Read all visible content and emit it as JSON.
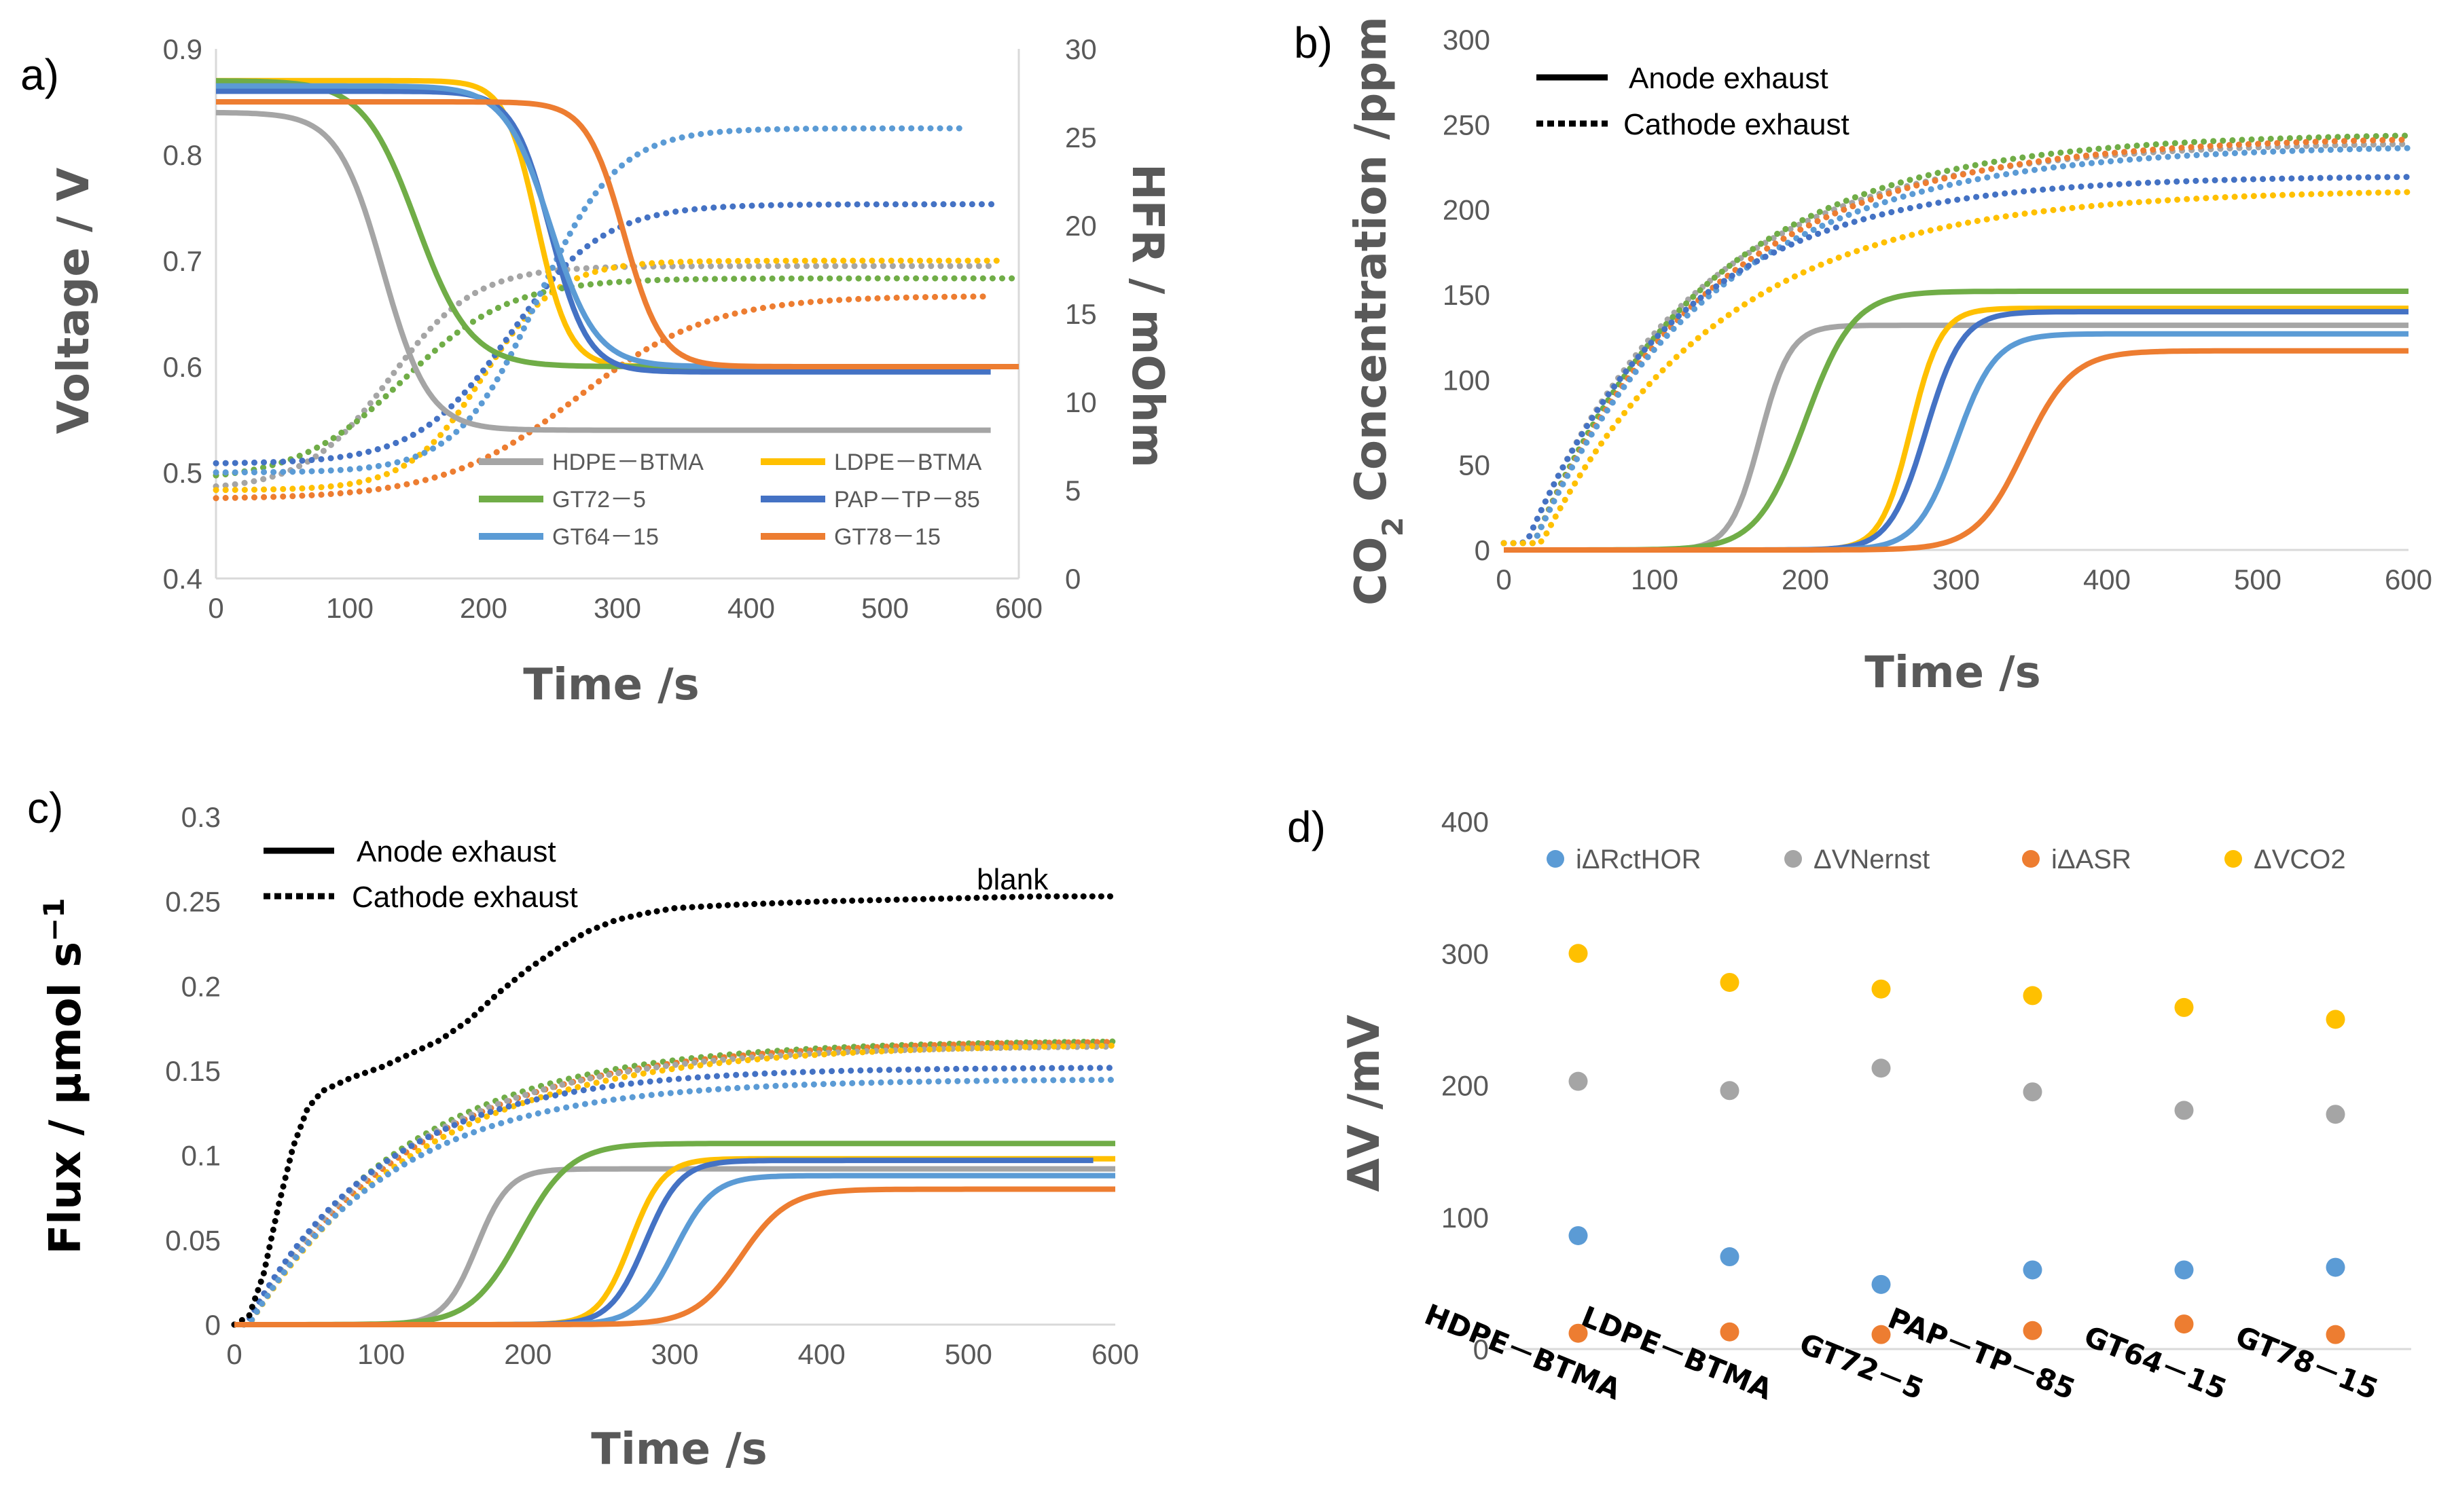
{
  "colors": {
    "HDPE-BTMA": "#a5a5a5",
    "LDPE-BTMA": "#ffc000",
    "GT72-5": "#70ad47",
    "PAP-TP-85": "#4472c4",
    "GT64-15": "#5b9bd5",
    "GT78-15": "#ed7d31",
    "blank": "#000000",
    "axis": "#d9d9d9"
  },
  "chart_data": [
    {
      "panel": "a)",
      "type": "line",
      "xlabel": "Time /s",
      "ylabel": "Voltage / V",
      "ylabel_right": "HFR / mOhm",
      "xlim": [
        0,
        600
      ],
      "ylim": [
        0.4,
        0.9
      ],
      "ylim_right": [
        0,
        30
      ],
      "x_ticks": [
        "0",
        "100",
        "200",
        "300",
        "400",
        "500",
        "600"
      ],
      "y_ticks": [
        "0.4",
        "0.5",
        "0.6",
        "0.7",
        "0.8",
        "0.9"
      ],
      "y_ticks_right": [
        "0",
        "5",
        "10",
        "15",
        "20",
        "25",
        "30"
      ],
      "legend": [
        "HDPE－BTMA",
        "LDPE－BTMA",
        "GT72－5",
        "PAP－TP－85",
        "GT64－15",
        "GT78－15"
      ],
      "series_voltage": [
        {
          "name": "HDPE－BTMA",
          "key": "HDPE-BTMA",
          "v0": 0.84,
          "v1": 0.54,
          "t50": 125,
          "w": 17,
          "tend": 580
        },
        {
          "name": "LDPE－BTMA",
          "key": "LDPE-BTMA",
          "v0": 0.87,
          "v1": 0.6,
          "t50": 240,
          "w": 12,
          "tend": 600
        },
        {
          "name": "GT72－5",
          "key": "GT72-5",
          "v0": 0.87,
          "v1": 0.6,
          "t50": 150,
          "w": 20,
          "tend": 600
        },
        {
          "name": "PAP－TP－85",
          "key": "PAP-TP-85",
          "v0": 0.86,
          "v1": 0.595,
          "t50": 250,
          "w": 14,
          "tend": 580
        },
        {
          "name": "GT64－15",
          "key": "GT64-15",
          "v0": 0.865,
          "v1": 0.6,
          "t50": 250,
          "w": 17,
          "tend": 600
        },
        {
          "name": "GT78－15",
          "key": "GT78-15",
          "v0": 0.85,
          "v1": 0.6,
          "t50": 305,
          "w": 14,
          "tend": 600
        }
      ],
      "series_hfr": [
        {
          "name": "HDPE－BTMA",
          "key": "HDPE-BTMA",
          "v0": 5,
          "v1": 17.7,
          "t50": 130,
          "w": 32,
          "tend": 580
        },
        {
          "name": "LDPE－BTMA",
          "key": "LDPE-BTMA",
          "v0": 5,
          "v1": 18,
          "t50": 200,
          "w": 28,
          "tend": 590
        },
        {
          "name": "GT72－5",
          "key": "GT72-5",
          "v0": 5.5,
          "v1": 17,
          "t50": 140,
          "w": 40,
          "tend": 600
        },
        {
          "name": "PAP－TP－85",
          "key": "PAP-TP-85",
          "v0": 6.5,
          "v1": 21.2,
          "t50": 220,
          "w": 35,
          "tend": 580
        },
        {
          "name": "GT64－15",
          "key": "GT64-15",
          "v0": 6,
          "v1": 25.5,
          "t50": 240,
          "w": 30,
          "tend": 560
        },
        {
          "name": "GT78－15",
          "key": "GT78-15",
          "v0": 4.5,
          "v1": 16,
          "t50": 270,
          "w": 50,
          "tend": 580
        }
      ]
    },
    {
      "panel": "b)",
      "type": "line",
      "xlabel": "Time /s",
      "ylabel_main": "CO",
      "ylabel_sub": "2",
      "ylabel_rest": " Concentration /ppm",
      "xlim": [
        0,
        600
      ],
      "ylim": [
        0,
        300
      ],
      "x_ticks": [
        "0",
        "100",
        "200",
        "300",
        "400",
        "500",
        "600"
      ],
      "y_ticks": [
        "0",
        "50",
        "100",
        "150",
        "200",
        "250",
        "300"
      ],
      "legend": [
        "Anode exhaust",
        "Cathode exhaust"
      ],
      "series_anode": [
        {
          "key": "HDPE-BTMA",
          "v1": 132,
          "t50": 170,
          "w": 10,
          "tend": 600
        },
        {
          "key": "GT72-5",
          "v1": 152,
          "t50": 200,
          "w": 16,
          "tend": 600
        },
        {
          "key": "LDPE-BTMA",
          "v1": 142,
          "t50": 270,
          "w": 10,
          "tend": 600
        },
        {
          "key": "PAP-TP-85",
          "v1": 140,
          "t50": 280,
          "w": 12,
          "tend": 600
        },
        {
          "key": "GT64-15",
          "v1": 127,
          "t50": 300,
          "w": 13,
          "tend": 600
        },
        {
          "key": "GT78-15",
          "v1": 117,
          "t50": 345,
          "w": 16,
          "tend": 600
        }
      ],
      "series_cathode": [
        {
          "key": "HDPE-BTMA",
          "v1": 240,
          "tau": 115,
          "t0": 15,
          "tend": 600
        },
        {
          "key": "GT72-5",
          "v1": 245,
          "tau": 115,
          "t0": 20,
          "tend": 600
        },
        {
          "key": "GT78-15",
          "v1": 243,
          "tau": 120,
          "t0": 20,
          "tend": 600
        },
        {
          "key": "GT64-15",
          "v1": 238,
          "tau": 120,
          "t0": 20,
          "tend": 600
        },
        {
          "key": "PAP-TP-85",
          "v1": 220,
          "tau": 105,
          "t0": 15,
          "tend": 600
        },
        {
          "key": "LDPE-BTMA",
          "v1": 212,
          "tau": 120,
          "t0": 25,
          "tend": 600
        }
      ]
    },
    {
      "panel": "c)",
      "type": "line",
      "xlabel": "Time /s",
      "ylabel": "Flux / µmol s",
      "ylabel_sup": "−1",
      "xlim": [
        0,
        600
      ],
      "ylim": [
        0,
        0.3
      ],
      "x_ticks": [
        "0",
        "100",
        "200",
        "300",
        "400",
        "500",
        "600"
      ],
      "y_ticks": [
        "0",
        "0.05",
        "0.1",
        "0.15",
        "0.2",
        "0.25",
        "0.3"
      ],
      "legend": [
        "Anode exhaust",
        "Cathode exhaust"
      ],
      "annotation": "blank",
      "series_anode": [
        {
          "key": "HDPE-BTMA",
          "v1": 0.092,
          "t50": 165,
          "w": 11,
          "tend": 600
        },
        {
          "key": "GT72-5",
          "v1": 0.107,
          "t50": 195,
          "w": 17,
          "tend": 600
        },
        {
          "key": "LDPE-BTMA",
          "v1": 0.098,
          "t50": 270,
          "w": 11,
          "tend": 600
        },
        {
          "key": "PAP-TP-85",
          "v1": 0.097,
          "t50": 280,
          "w": 12,
          "tend": 585
        },
        {
          "key": "GT64-15",
          "v1": 0.088,
          "t50": 300,
          "w": 13,
          "tend": 600
        },
        {
          "key": "GT78-15",
          "v1": 0.08,
          "t50": 345,
          "w": 16,
          "tend": 600
        }
      ],
      "series_cathode": [
        {
          "key": "GT72-5",
          "v1": 0.168,
          "tau": 110,
          "t0": 8,
          "tend": 600
        },
        {
          "key": "GT78-15",
          "v1": 0.168,
          "tau": 115,
          "t0": 10,
          "tend": 600
        },
        {
          "key": "HDPE-BTMA",
          "v1": 0.165,
          "tau": 110,
          "t0": 8,
          "tend": 600
        },
        {
          "key": "LDPE-BTMA",
          "v1": 0.166,
          "tau": 120,
          "t0": 10,
          "tend": 600
        },
        {
          "key": "PAP-TP-85",
          "v1": 0.152,
          "tau": 95,
          "t0": 8,
          "tend": 600
        },
        {
          "key": "GT64-15",
          "v1": 0.145,
          "tau": 100,
          "t0": 10,
          "tend": 600
        }
      ],
      "series_blank": {
        "key": "blank",
        "points": [
          [
            0,
            0
          ],
          [
            10,
            0.005
          ],
          [
            20,
            0.03
          ],
          [
            30,
            0.07
          ],
          [
            40,
            0.105
          ],
          [
            50,
            0.128
          ],
          [
            60,
            0.138
          ],
          [
            80,
            0.146
          ],
          [
            100,
            0.152
          ],
          [
            120,
            0.16
          ],
          [
            140,
            0.168
          ],
          [
            160,
            0.18
          ],
          [
            180,
            0.196
          ],
          [
            200,
            0.21
          ],
          [
            220,
            0.222
          ],
          [
            240,
            0.232
          ],
          [
            260,
            0.239
          ],
          [
            280,
            0.243
          ],
          [
            300,
            0.246
          ],
          [
            340,
            0.248
          ],
          [
            400,
            0.25
          ],
          [
            450,
            0.251
          ],
          [
            500,
            0.252
          ],
          [
            550,
            0.253
          ],
          [
            600,
            0.253
          ]
        ]
      }
    },
    {
      "panel": "d)",
      "type": "scatter",
      "ylabel": "ΔV /mV",
      "ylim": [
        0,
        400
      ],
      "y_ticks": [
        "0",
        "100",
        "200",
        "300",
        "400"
      ],
      "categories": [
        "HDPE－BTMA",
        "LDPE－BTMA",
        "GT72－5",
        "PAP－TP－85",
        "GT64－15",
        "GT78－15"
      ],
      "series": [
        {
          "name": "iΔRctHOR",
          "color": "#5b9bd5",
          "values": [
            86,
            70,
            49,
            60,
            60,
            62
          ]
        },
        {
          "name": "ΔVNernst",
          "color": "#a5a5a5",
          "values": [
            203,
            196,
            213,
            195,
            181,
            178
          ]
        },
        {
          "name": "iΔASR",
          "color": "#ed7d31",
          "values": [
            12,
            13,
            11,
            14,
            19,
            11
          ]
        },
        {
          "name": "ΔVCO2",
          "color": "#ffc000",
          "values": [
            300,
            278,
            273,
            268,
            259,
            250
          ]
        }
      ]
    }
  ]
}
